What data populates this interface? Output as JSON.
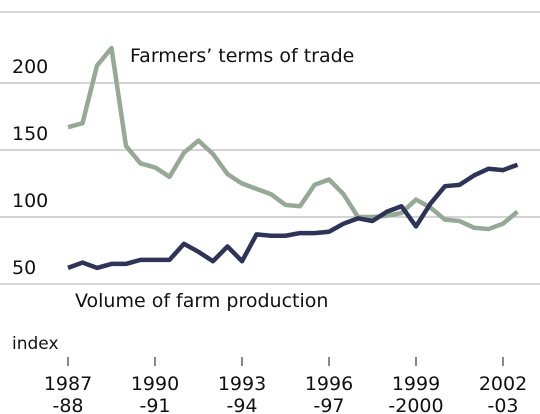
{
  "chart_data": {
    "type": "line",
    "annotations": [
      "Farmers’ terms of trade",
      "Volume of farm production"
    ],
    "y_label": "index",
    "categories": [
      [
        "1987",
        "-88"
      ],
      null,
      null,
      null,
      null,
      null,
      [
        "1990",
        "-91"
      ],
      null,
      null,
      null,
      null,
      null,
      [
        "1993",
        "-94"
      ],
      null,
      null,
      null,
      null,
      null,
      [
        "1996",
        "-97"
      ],
      null,
      null,
      null,
      null,
      null,
      [
        "1999",
        "-2000"
      ],
      null,
      null,
      null,
      null,
      null,
      [
        "2002",
        "-03"
      ],
      null
    ],
    "series": [
      {
        "name": "Farmers’ terms of trade",
        "color": "#95a996",
        "values": [
          167,
          170,
          213,
          226,
          153,
          140,
          137,
          130,
          148,
          157,
          147,
          132,
          125,
          121,
          117,
          109,
          108,
          124,
          128,
          117,
          100,
          100,
          101,
          103,
          113,
          107,
          98,
          97,
          92,
          91,
          95,
          104
        ]
      },
      {
        "name": "Volume of farm production",
        "color": "#2e3457",
        "values": [
          62,
          66,
          62,
          65,
          65,
          68,
          68,
          68,
          80,
          74,
          67,
          78,
          67,
          87,
          86,
          86,
          88,
          88,
          89,
          95,
          99,
          97,
          104,
          108,
          93,
          110,
          123,
          124,
          131,
          136,
          135,
          139
        ]
      }
    ],
    "ylim": [
      0,
      250
    ],
    "yticks": [
      50,
      100,
      150,
      200
    ],
    "grid": true
  }
}
